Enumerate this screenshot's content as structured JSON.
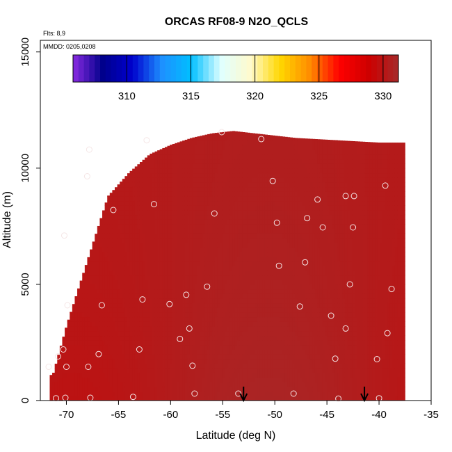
{
  "chart_data": {
    "type": "heatmap",
    "title": "ORCAS RF08-9 N2O_QCLS",
    "annotations": [
      "Flts: 8,9",
      "MMDD: 0205,0208"
    ],
    "xlabel": "Latitude (deg N)",
    "ylabel": "Altitude (m)",
    "xlim": [
      -72.5,
      -35
    ],
    "ylim": [
      0,
      15500
    ],
    "x_ticks": [
      -70,
      -65,
      -60,
      -55,
      -50,
      -45,
      -40,
      -35
    ],
    "x_tick_labels": [
      "-70",
      "-65",
      "-60",
      "-55",
      "-50",
      "-45",
      "-40",
      "-35"
    ],
    "y_ticks": [
      0,
      5000,
      10000,
      15000
    ],
    "y_tick_labels": [
      "0",
      "5000",
      "10000",
      "15000"
    ],
    "colorbar": {
      "range": [
        305.8,
        331.2
      ],
      "ticks": [
        310,
        315,
        320,
        325,
        330
      ],
      "tick_labels": [
        "310",
        "315",
        "320",
        "325",
        "330"
      ],
      "colors": [
        "#8a2be2",
        "#00008b",
        "#0000cd",
        "#1e90ff",
        "#00bfff",
        "#e0ffff",
        "#fffacd",
        "#ffd700",
        "#ff8c00",
        "#ff0000",
        "#cd0000",
        "#a52a2a"
      ]
    },
    "column_extent": {
      "lat": [
        -71.3,
        -70,
        -68,
        -66,
        -64,
        -62,
        -60,
        -58,
        -56,
        -54,
        -52,
        -50,
        -48,
        -46,
        -44,
        -42,
        -40,
        -38.5,
        -38
      ],
      "bottom": [
        0,
        0,
        0,
        0,
        0,
        0,
        0,
        0,
        0,
        0,
        0,
        0,
        0,
        0,
        0,
        0,
        0,
        0,
        0
      ],
      "top": [
        1100,
        3200,
        6000,
        8800,
        9800,
        10600,
        11000,
        11300,
        11500,
        11600,
        11500,
        11400,
        11300,
        11250,
        11200,
        11150,
        11100,
        11100,
        11100
      ]
    },
    "series": [
      {
        "values": [
          {
            "lat": -71.0,
            "alt": 100
          },
          {
            "lat": -70.1,
            "alt": 120
          },
          {
            "lat": -67.7,
            "alt": 120
          },
          {
            "lat": -63.6,
            "alt": 160
          },
          {
            "lat": -57.7,
            "alt": 300
          },
          {
            "lat": -48.2,
            "alt": 300
          },
          {
            "lat": -43.9,
            "alt": 80
          },
          {
            "lat": -40.0,
            "alt": 100
          },
          {
            "lat": -53.5,
            "alt": 300
          },
          {
            "lat": -71.7,
            "alt": 1450
          },
          {
            "lat": -70.0,
            "alt": 1450
          },
          {
            "lat": -67.9,
            "alt": 1450
          },
          {
            "lat": -57.9,
            "alt": 1500
          },
          {
            "lat": -40.2,
            "alt": 1780
          },
          {
            "lat": -44.2,
            "alt": 1800
          },
          {
            "lat": -70.8,
            "alt": 1900
          },
          {
            "lat": -70.3,
            "alt": 2200
          },
          {
            "lat": -66.9,
            "alt": 2000
          },
          {
            "lat": -63.0,
            "alt": 2200
          },
          {
            "lat": -59.1,
            "alt": 2650
          },
          {
            "lat": -58.2,
            "alt": 3100
          },
          {
            "lat": -43.2,
            "alt": 3100
          },
          {
            "lat": -39.2,
            "alt": 2900
          },
          {
            "lat": -44.6,
            "alt": 3650
          },
          {
            "lat": -69.9,
            "alt": 4100
          },
          {
            "lat": -66.6,
            "alt": 4100
          },
          {
            "lat": -62.7,
            "alt": 4350
          },
          {
            "lat": -60.1,
            "alt": 4150
          },
          {
            "lat": -58.5,
            "alt": 4550
          },
          {
            "lat": -56.5,
            "alt": 4900
          },
          {
            "lat": -47.6,
            "alt": 4050
          },
          {
            "lat": -42.8,
            "alt": 5000
          },
          {
            "lat": -38.8,
            "alt": 4800
          },
          {
            "lat": -49.6,
            "alt": 5800
          },
          {
            "lat": -47.1,
            "alt": 5950
          },
          {
            "lat": -70.2,
            "alt": 7100
          },
          {
            "lat": -65.5,
            "alt": 8200
          },
          {
            "lat": -61.6,
            "alt": 8450
          },
          {
            "lat": -55.8,
            "alt": 8050
          },
          {
            "lat": -49.8,
            "alt": 7650
          },
          {
            "lat": -46.9,
            "alt": 7850
          },
          {
            "lat": -45.4,
            "alt": 7450
          },
          {
            "lat": -42.5,
            "alt": 7450
          },
          {
            "lat": -45.9,
            "alt": 8650
          },
          {
            "lat": -43.2,
            "alt": 8800
          },
          {
            "lat": -42.4,
            "alt": 8800
          },
          {
            "lat": -39.4,
            "alt": 9250
          },
          {
            "lat": -50.2,
            "alt": 9450
          },
          {
            "lat": -68.0,
            "alt": 9650
          },
          {
            "lat": -67.8,
            "alt": 10800
          },
          {
            "lat": -62.3,
            "alt": 11200
          },
          {
            "lat": -51.3,
            "alt": 11250
          },
          {
            "lat": -55.1,
            "alt": 11550
          }
        ]
      }
    ],
    "markers": {
      "arrow_lats": [
        -53.0,
        -41.4
      ]
    }
  }
}
